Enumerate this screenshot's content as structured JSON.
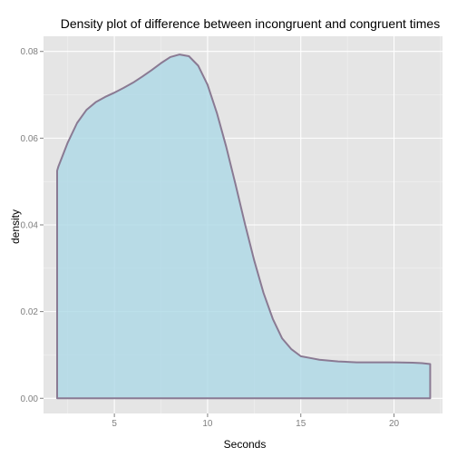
{
  "chart_data": {
    "type": "area",
    "title": "Density plot of difference between incongruent and congruent times",
    "xlabel": "Seconds",
    "ylabel": "density",
    "xlim": [
      1.2,
      22.6
    ],
    "ylim": [
      -0.0035,
      0.0835
    ],
    "x_ticks": [
      5,
      10,
      15,
      20
    ],
    "x_tick_labels": [
      "5",
      "10",
      "15",
      "20"
    ],
    "y_ticks": [
      0.0,
      0.02,
      0.04,
      0.06,
      0.08
    ],
    "y_tick_labels": [
      "0.00",
      "0.02",
      "0.04",
      "0.06",
      "0.08"
    ],
    "grid": true,
    "legend": "none",
    "series": [
      {
        "x": [
          1.93,
          2.0,
          2.5,
          3.0,
          3.5,
          4.0,
          4.5,
          5.0,
          5.5,
          6.0,
          6.5,
          7.0,
          7.5,
          8.0,
          8.5,
          9.0,
          9.5,
          10.0,
          10.5,
          11.0,
          11.5,
          12.0,
          12.5,
          13.0,
          13.5,
          14.0,
          14.5,
          15.0,
          15.5,
          16.0,
          17.0,
          18.0,
          19.0,
          20.0,
          21.0,
          21.5,
          21.94
        ],
        "y": [
          0.0525,
          0.0535,
          0.059,
          0.0635,
          0.0665,
          0.0683,
          0.0695,
          0.0705,
          0.0716,
          0.0728,
          0.0742,
          0.0757,
          0.0773,
          0.0787,
          0.0793,
          0.0789,
          0.0767,
          0.0723,
          0.0658,
          0.058,
          0.0493,
          0.0403,
          0.0318,
          0.0243,
          0.0183,
          0.0138,
          0.0113,
          0.0097,
          0.0093,
          0.0089,
          0.0085,
          0.0083,
          0.0083,
          0.0083,
          0.0082,
          0.0081,
          0.0079
        ]
      }
    ],
    "colors": {
      "panel_background": "#e5e5e5",
      "grid_major": "#ffffff",
      "grid_minor": "#f2f2f2",
      "fill": "#add8e6",
      "outline": "#8a7a93",
      "tick_label": "#7f7f7f",
      "tick_mark": "#7f7f7f"
    }
  }
}
